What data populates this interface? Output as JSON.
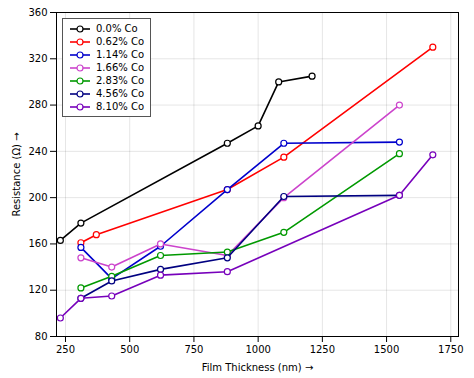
{
  "chart_data": {
    "type": "line",
    "xlabel": "Film Thickness (nm)",
    "ylabel": "Resistance (Ω)",
    "xlim": [
      215,
      1780
    ],
    "ylim": [
      80,
      360
    ],
    "xticks": [
      250,
      500,
      750,
      1000,
      1250,
      1500,
      1750
    ],
    "yticks": [
      80,
      120,
      160,
      200,
      240,
      280,
      320,
      360
    ],
    "grid": true,
    "legend": "upper left",
    "marker": "circle",
    "series": [
      {
        "name": "0.0% Co",
        "color": "#000000",
        "x": [
          230,
          310,
          880,
          1000,
          1080,
          1210
        ],
        "values": [
          163,
          178,
          247,
          262,
          300,
          305
        ]
      },
      {
        "name": "0.62% Co",
        "color": "#ff0000",
        "x": [
          310,
          370,
          880,
          1100,
          1680
        ],
        "values": [
          161,
          168,
          207,
          235,
          330
        ]
      },
      {
        "name": "1.14% Co",
        "color": "#0000cc",
        "x": [
          310,
          430,
          620,
          880,
          1100,
          1550
        ],
        "values": [
          157,
          130,
          158,
          207,
          247,
          248
        ]
      },
      {
        "name": "1.66% Co",
        "color": "#cc44cc",
        "x": [
          310,
          430,
          620,
          880,
          1100,
          1550
        ],
        "values": [
          148,
          140,
          160,
          150,
          200,
          280
        ]
      },
      {
        "name": "2.83% Co",
        "color": "#009900",
        "x": [
          310,
          430,
          620,
          880,
          1100,
          1550
        ],
        "values": [
          122,
          132,
          150,
          153,
          170,
          238
        ]
      },
      {
        "name": "4.56% Co",
        "color": "#000080",
        "x": [
          310,
          430,
          620,
          880,
          1100,
          1550
        ],
        "values": [
          113,
          128,
          138,
          148,
          201,
          202
        ]
      },
      {
        "name": "8.10% Co",
        "color": "#7700bb",
        "x": [
          230,
          310,
          430,
          620,
          880,
          1550,
          1680
        ],
        "values": [
          96,
          113,
          115,
          133,
          136,
          202,
          237
        ]
      }
    ]
  }
}
